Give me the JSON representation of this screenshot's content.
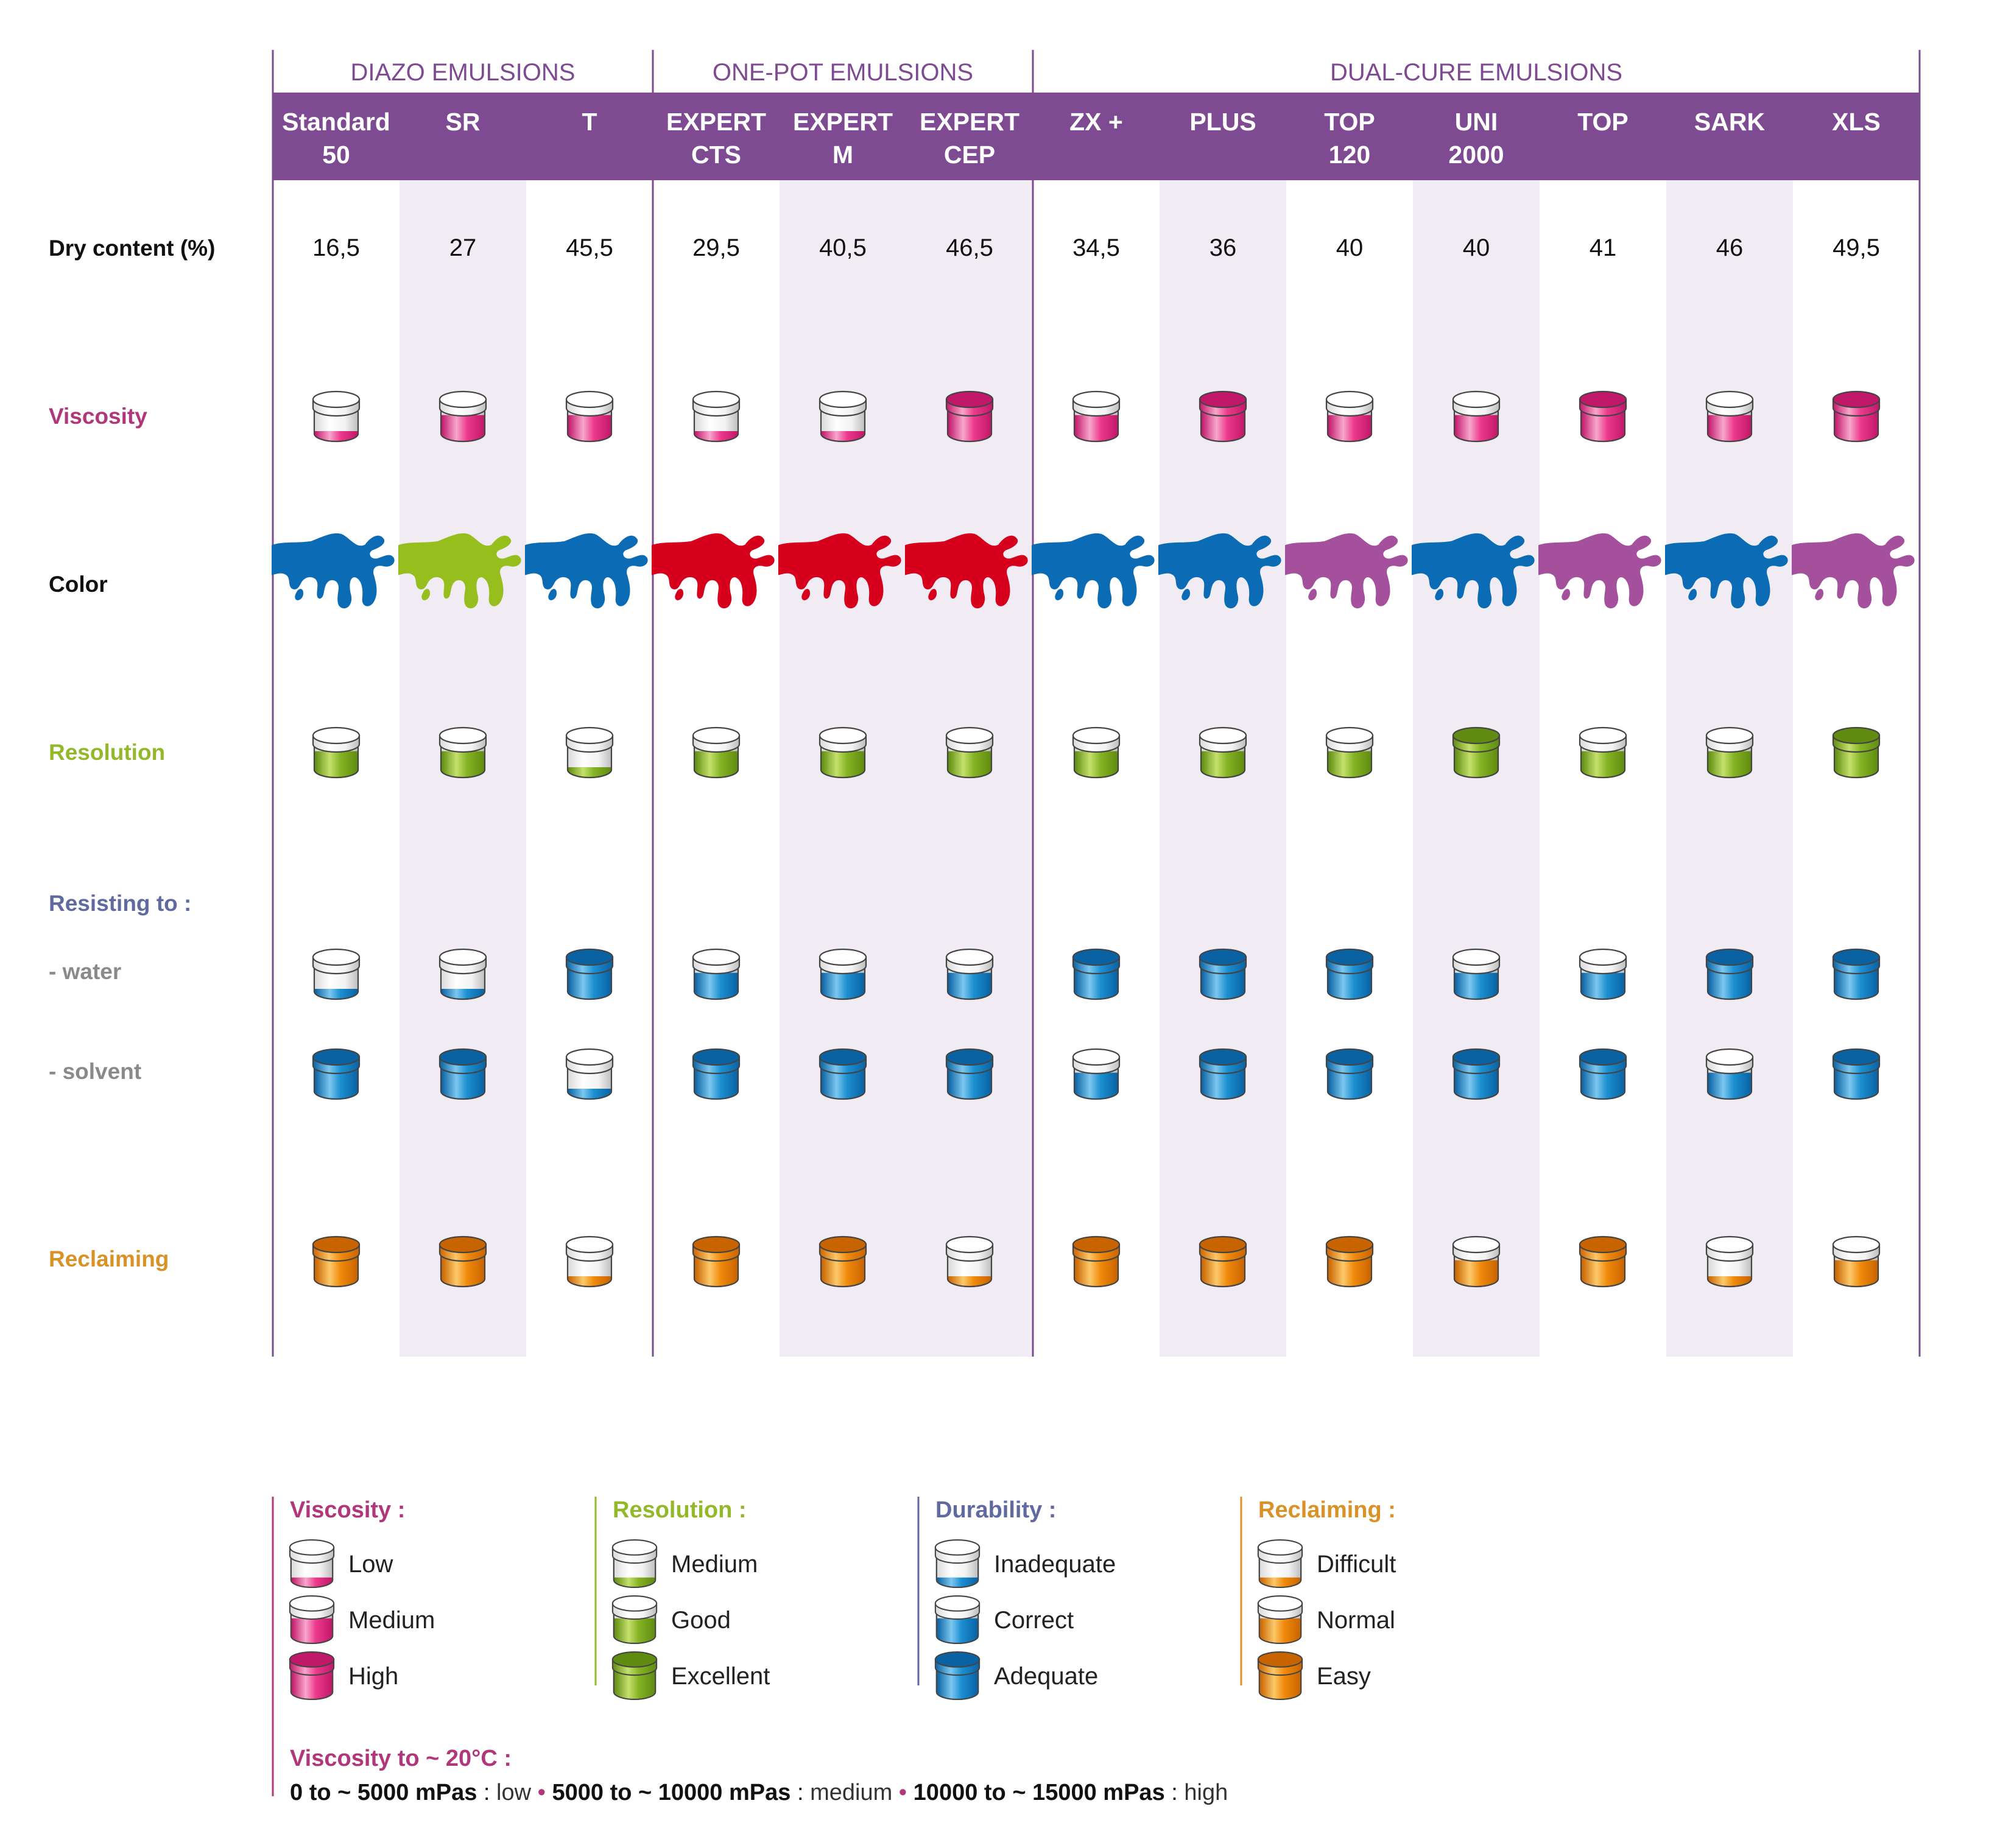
{
  "colors": {
    "purple": "#7e4b92",
    "shade": "#f1ebf4",
    "viscosity": "#b0377a",
    "resolution": "#93b82a",
    "durability": "#5e6aa0",
    "reclaiming": "#d99227",
    "grey": "#8a8a8a",
    "black": "#111111",
    "paint_blue": "#0b6cb5",
    "paint_green": "#96be1d",
    "paint_red": "#d6001c",
    "paint_violet": "#a5509c",
    "pot_pink": "#ec3a8c",
    "pot_green": "#86b324",
    "pot_blue": "#1b8fd1",
    "pot_orange": "#f18a0c"
  },
  "groups": [
    {
      "label": "DIAZO EMULSIONS"
    },
    {
      "label": "ONE-POT EMULSIONS"
    },
    {
      "label": "DUAL-CURE EMULSIONS"
    }
  ],
  "rows": {
    "dry_content": "Dry content (%)",
    "viscosity": "Viscosity",
    "color": "Color",
    "resolution": "Resolution",
    "resisting": "Resisting to :",
    "water": "- water",
    "solvent": "- solvent",
    "reclaiming": "Reclaiming"
  },
  "products": [
    {
      "name": [
        "Standard",
        "50"
      ],
      "dry": "16,5",
      "viscosity": 0,
      "color": "blue",
      "resolution": 1,
      "water": 0,
      "solvent": 2,
      "reclaiming": 2
    },
    {
      "name": [
        "SR"
      ],
      "dry": "27",
      "viscosity": 1,
      "color": "green",
      "resolution": 1,
      "water": 0,
      "solvent": 2,
      "reclaiming": 2
    },
    {
      "name": [
        "T"
      ],
      "dry": "45,5",
      "viscosity": 1,
      "color": "blue",
      "resolution": 0,
      "water": 2,
      "solvent": 0,
      "reclaiming": 0
    },
    {
      "name": [
        "EXPERT",
        "CTS"
      ],
      "dry": "29,5",
      "viscosity": 0,
      "color": "red",
      "resolution": 1,
      "water": 1,
      "solvent": 2,
      "reclaiming": 2
    },
    {
      "name": [
        "EXPERT",
        "M"
      ],
      "dry": "40,5",
      "viscosity": 0,
      "color": "red",
      "resolution": 1,
      "water": 1,
      "solvent": 2,
      "reclaiming": 2
    },
    {
      "name": [
        "EXPERT",
        "CEP"
      ],
      "dry": "46,5",
      "viscosity": 2,
      "color": "red",
      "resolution": 1,
      "water": 1,
      "solvent": 2,
      "reclaiming": 0
    },
    {
      "name": [
        "ZX +"
      ],
      "dry": "34,5",
      "viscosity": 1,
      "color": "blue",
      "resolution": 1,
      "water": 2,
      "solvent": 1,
      "reclaiming": 2
    },
    {
      "name": [
        "PLUS"
      ],
      "dry": "36",
      "viscosity": 2,
      "color": "blue",
      "resolution": 1,
      "water": 2,
      "solvent": 2,
      "reclaiming": 2
    },
    {
      "name": [
        "TOP",
        "120"
      ],
      "dry": "40",
      "viscosity": 1,
      "color": "violet",
      "resolution": 1,
      "water": 2,
      "solvent": 2,
      "reclaiming": 2
    },
    {
      "name": [
        "UNI",
        "2000"
      ],
      "dry": "40",
      "viscosity": 1,
      "color": "blue",
      "resolution": 2,
      "water": 1,
      "solvent": 2,
      "reclaiming": 1
    },
    {
      "name": [
        "TOP"
      ],
      "dry": "41",
      "viscosity": 2,
      "color": "violet",
      "resolution": 1,
      "water": 1,
      "solvent": 2,
      "reclaiming": 2
    },
    {
      "name": [
        "SARK"
      ],
      "dry": "46",
      "viscosity": 1,
      "color": "blue",
      "resolution": 1,
      "water": 2,
      "solvent": 1,
      "reclaiming": 0
    },
    {
      "name": [
        "XLS"
      ],
      "dry": "49,5",
      "viscosity": 2,
      "color": "violet",
      "resolution": 2,
      "water": 2,
      "solvent": 2,
      "reclaiming": 1
    }
  ],
  "legend": {
    "viscosity": {
      "title": "Viscosity :",
      "items": [
        "Low",
        "Medium",
        "High"
      ]
    },
    "resolution": {
      "title": "Resolution :",
      "items": [
        "Medium",
        "Good",
        "Excellent"
      ]
    },
    "durability": {
      "title": "Durability :",
      "items": [
        "Inadequate",
        "Correct",
        "Adequate"
      ]
    },
    "reclaiming": {
      "title": "Reclaiming :",
      "items": [
        "Difficult",
        "Normal",
        "Easy"
      ]
    }
  },
  "footnote": {
    "title": "Viscosity to ~ 20°C :",
    "ranges": [
      {
        "range": "0 to ~ 5000 mPas",
        "sep": " : ",
        "label": "low"
      },
      {
        "range": "5000 to ~ 10000 mPas",
        "sep": " : ",
        "label": "medium"
      },
      {
        "range": "10000 to ~ 15000 mPas",
        "sep": " : ",
        "label": "high"
      }
    ]
  }
}
